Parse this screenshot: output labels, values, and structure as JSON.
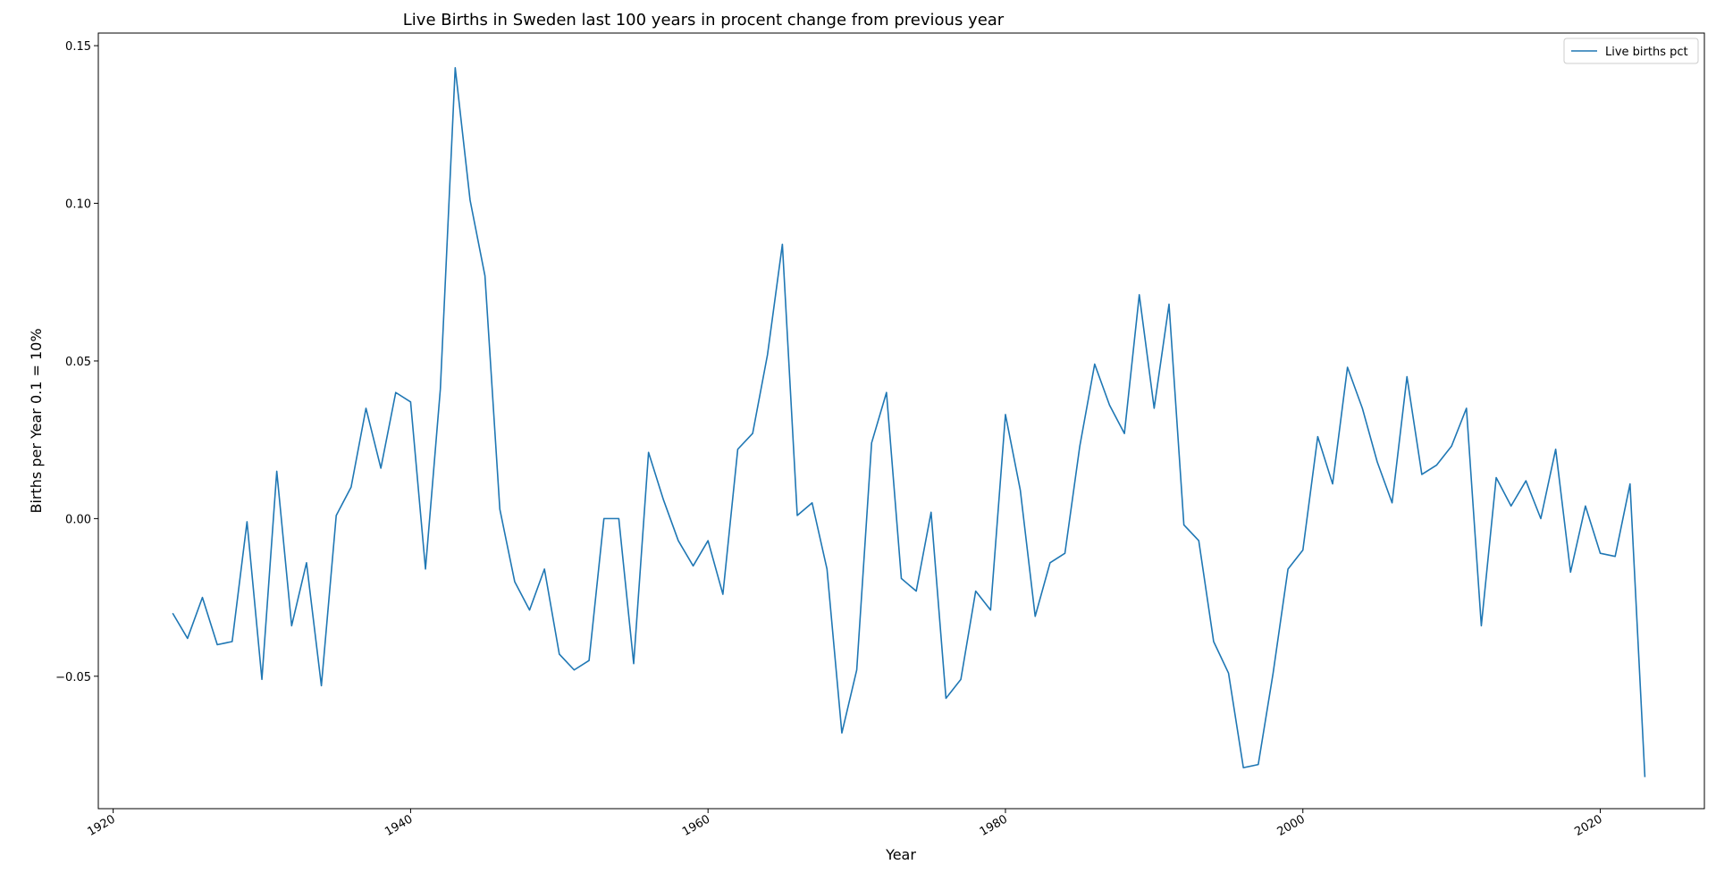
{
  "chart_data": {
    "type": "line",
    "title": "Live Births in Sweden last 100 years in procent change from previous year",
    "xlabel": "Year",
    "ylabel": "Births per Year 0.1 = 10%",
    "xlim": [
      1919,
      2027
    ],
    "ylim": [
      -0.092,
      0.154
    ],
    "xticks": [
      1920,
      1940,
      1960,
      1980,
      2000,
      2020
    ],
    "yticks": [
      -0.05,
      0.0,
      0.05,
      0.1,
      0.15
    ],
    "ytick_labels": [
      "−0.05",
      "0.00",
      "0.05",
      "0.10",
      "0.15"
    ],
    "grid": false,
    "legend": {
      "position": "top-right",
      "entries": [
        "Live births pct"
      ]
    },
    "series": [
      {
        "name": "Live births pct",
        "color": "#1f77b4",
        "x": [
          1924,
          1925,
          1926,
          1927,
          1928,
          1929,
          1930,
          1931,
          1932,
          1933,
          1934,
          1935,
          1936,
          1937,
          1938,
          1939,
          1940,
          1941,
          1942,
          1943,
          1944,
          1945,
          1946,
          1947,
          1948,
          1949,
          1950,
          1951,
          1952,
          1953,
          1954,
          1955,
          1956,
          1957,
          1958,
          1959,
          1960,
          1961,
          1962,
          1963,
          1964,
          1965,
          1966,
          1967,
          1968,
          1969,
          1970,
          1971,
          1972,
          1973,
          1974,
          1975,
          1976,
          1977,
          1978,
          1979,
          1980,
          1981,
          1982,
          1983,
          1984,
          1985,
          1986,
          1987,
          1988,
          1989,
          1990,
          1991,
          1992,
          1993,
          1994,
          1995,
          1996,
          1997,
          1998,
          1999,
          2000,
          2001,
          2002,
          2003,
          2004,
          2005,
          2006,
          2007,
          2008,
          2009,
          2010,
          2011,
          2012,
          2013,
          2014,
          2015,
          2016,
          2017,
          2018,
          2019,
          2020,
          2021,
          2022,
          2023
        ],
        "y": [
          -0.03,
          -0.038,
          -0.025,
          -0.04,
          -0.039,
          -0.001,
          -0.051,
          0.015,
          -0.034,
          -0.014,
          -0.053,
          0.001,
          0.01,
          0.035,
          0.016,
          0.04,
          0.037,
          -0.016,
          0.041,
          0.143,
          0.101,
          0.077,
          0.003,
          -0.02,
          -0.029,
          -0.016,
          -0.043,
          -0.048,
          -0.045,
          0.0,
          0.0,
          -0.046,
          0.021,
          0.006,
          -0.007,
          -0.015,
          -0.007,
          -0.024,
          0.022,
          0.027,
          0.052,
          0.087,
          0.001,
          0.005,
          -0.016,
          -0.068,
          -0.048,
          0.024,
          0.04,
          -0.019,
          -0.023,
          0.002,
          -0.057,
          -0.051,
          -0.023,
          -0.029,
          0.033,
          0.009,
          -0.031,
          -0.014,
          -0.011,
          0.023,
          0.049,
          0.036,
          0.027,
          0.071,
          0.035,
          0.068,
          -0.002,
          -0.007,
          -0.039,
          -0.049,
          -0.079,
          -0.078,
          -0.049,
          -0.016,
          -0.01,
          0.026,
          0.011,
          0.048,
          0.035,
          0.018,
          0.005,
          0.045,
          0.014,
          0.017,
          0.023,
          0.035,
          -0.034,
          0.013,
          0.004,
          0.012,
          0.0,
          0.022,
          -0.017,
          0.004,
          -0.011,
          -0.012,
          0.011,
          -0.082
        ]
      }
    ]
  }
}
